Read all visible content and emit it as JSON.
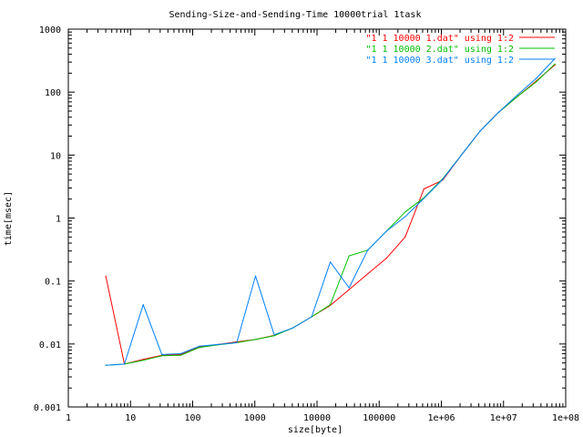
{
  "chart_data": {
    "type": "line",
    "title": "Sending-Size-and-Sending-Time 10000trial 1task",
    "xlabel": "size[byte]",
    "ylabel": "time[msec]",
    "xscale": "log",
    "yscale": "log",
    "xlim": [
      1,
      100000000
    ],
    "ylim": [
      0.001,
      1000
    ],
    "grid": false,
    "legend_position": "top-right",
    "x_ticks": [
      {
        "v": 1,
        "label": "1"
      },
      {
        "v": 10,
        "label": "10"
      },
      {
        "v": 100,
        "label": "100"
      },
      {
        "v": 1000,
        "label": "1000"
      },
      {
        "v": 10000,
        "label": "10000"
      },
      {
        "v": 100000,
        "label": "100000"
      },
      {
        "v": 1000000,
        "label": "1e+06"
      },
      {
        "v": 10000000,
        "label": "1e+07"
      },
      {
        "v": 100000000,
        "label": "1e+08"
      }
    ],
    "y_ticks": [
      {
        "v": 0.001,
        "label": "0.001"
      },
      {
        "v": 0.01,
        "label": "0.01"
      },
      {
        "v": 0.1,
        "label": "0.1"
      },
      {
        "v": 1,
        "label": "1"
      },
      {
        "v": 10,
        "label": "10"
      },
      {
        "v": 100,
        "label": "100"
      },
      {
        "v": 1000,
        "label": "1000"
      }
    ],
    "series": [
      {
        "name": "\"1 1 10000 1.dat\" using 1:2",
        "color": "#ff0000",
        "x": [
          4,
          8,
          16,
          32,
          64,
          128,
          256,
          512,
          1024,
          2048,
          4096,
          8192,
          16384,
          32768,
          65536,
          131072,
          262144,
          524288,
          1048576,
          2097152,
          4194304,
          8388608,
          16777216,
          33554432,
          67108864
        ],
        "y": [
          0.12,
          0.0048,
          0.0057,
          0.0066,
          0.0068,
          0.009,
          0.0098,
          0.0108,
          0.0118,
          0.0137,
          0.018,
          0.027,
          0.041,
          0.073,
          0.13,
          0.23,
          0.5,
          2.9,
          4.0,
          10,
          24,
          48,
          85,
          150,
          270
        ]
      },
      {
        "name": "\"1 1 10000 2.dat\" using 1:2",
        "color": "#00c000",
        "x": [
          4,
          8,
          16,
          32,
          64,
          128,
          256,
          512,
          1024,
          2048,
          4096,
          8192,
          16384,
          32768,
          65536,
          131072,
          262144,
          524288,
          1048576,
          2097152,
          4194304,
          8388608,
          16777216,
          33554432,
          67108864
        ],
        "y": [
          0.0046,
          0.0048,
          0.0055,
          0.0065,
          0.0066,
          0.0088,
          0.0097,
          0.0105,
          0.0118,
          0.0135,
          0.018,
          0.027,
          0.042,
          0.25,
          0.31,
          0.62,
          1.25,
          2.1,
          4.2,
          10,
          24,
          48,
          85,
          145,
          280
        ]
      },
      {
        "name": "\"1 1 10000 3.dat\" using 1:2",
        "color": "#0080ff",
        "x": [
          4,
          8,
          16,
          32,
          64,
          128,
          256,
          512,
          1024,
          2048,
          4096,
          8192,
          16384,
          32768,
          65536,
          131072,
          262144,
          524288,
          1048576,
          2097152,
          4194304,
          8388608,
          16777216,
          33554432,
          67108864
        ],
        "y": [
          0.0046,
          0.0048,
          0.042,
          0.0068,
          0.007,
          0.0092,
          0.0098,
          0.0105,
          0.12,
          0.014,
          0.018,
          0.027,
          0.2,
          0.078,
          0.31,
          0.62,
          1.05,
          2.05,
          4.1,
          10,
          24,
          48,
          90,
          165,
          340
        ]
      }
    ]
  }
}
